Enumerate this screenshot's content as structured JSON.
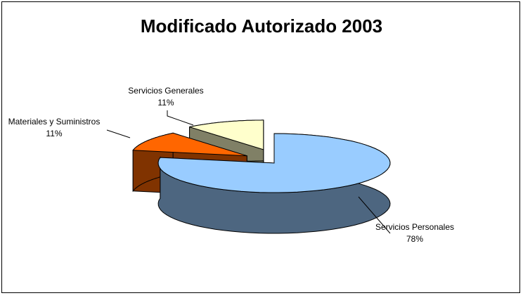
{
  "chart_data": {
    "type": "pie",
    "title": "Modificado Autorizado 2003",
    "categories": [
      "Servicios Personales",
      "Materiales y Suministros",
      "Servicios Generales"
    ],
    "values": [
      78,
      11,
      11
    ],
    "value_labels": [
      "78%",
      "11%",
      "11%"
    ],
    "colors": [
      "#99ccff",
      "#ff6600",
      "#ffffcc"
    ]
  }
}
